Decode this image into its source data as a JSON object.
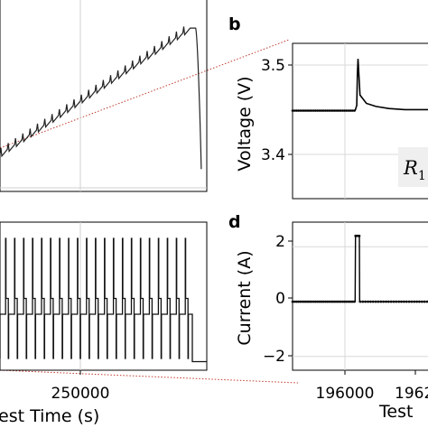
{
  "panels": {
    "b_letter": "b",
    "d_letter": "d",
    "r1_label": "R",
    "r1_subscript": "1"
  },
  "chart_data": [
    {
      "panel": "a",
      "type": "line",
      "ylabel": "",
      "xlim": [
        227000,
        283000
      ],
      "ylim": [
        3.25,
        3.52
      ],
      "x": [
        227000,
        240000,
        250000,
        260000,
        270000,
        278500,
        280000,
        281500
      ],
      "y": [
        3.3,
        3.33,
        3.36,
        3.39,
        3.43,
        3.47,
        3.46,
        3.28
      ],
      "grid": true
    },
    {
      "panel": "b",
      "type": "line",
      "ylabel": "Voltage (V)",
      "xlim": [
        195800,
        196250
      ],
      "ylim": [
        3.37,
        3.52
      ],
      "yticks": [
        "3.4",
        "3.5"
      ],
      "x": [
        195800,
        195995,
        196000,
        196002,
        196004,
        196010,
        196030,
        196060,
        196100,
        196150,
        196250
      ],
      "y": [
        3.455,
        3.455,
        3.46,
        3.49,
        3.505,
        3.47,
        3.462,
        3.459,
        3.457,
        3.456,
        3.456
      ],
      "grid": true
    },
    {
      "panel": "c",
      "type": "line",
      "xlabel": "est Time (s)",
      "xlim": [
        227000,
        283000
      ],
      "xticks": [
        "250000"
      ],
      "series_description": "pulse train: high pulses to 2.4 A, plateaus at 0.5 A, negative pulses to -1.4 A",
      "pulse_high": 2.4,
      "plateau": 0.5,
      "pulse_low": -1.4,
      "grid": true
    },
    {
      "panel": "d",
      "type": "line",
      "ylabel": "Current (A)",
      "xlabel": "Test",
      "xlim": [
        195800,
        196250
      ],
      "ylim": [
        -2.5,
        2.9
      ],
      "yticks": [
        "2",
        "0",
        "−2"
      ],
      "xticks": [
        "196000",
        "1962"
      ],
      "x": [
        195800,
        195995,
        195996,
        196008,
        196009,
        196250
      ],
      "y": [
        0,
        0,
        2.4,
        2.4,
        0,
        0
      ],
      "grid": true
    }
  ]
}
